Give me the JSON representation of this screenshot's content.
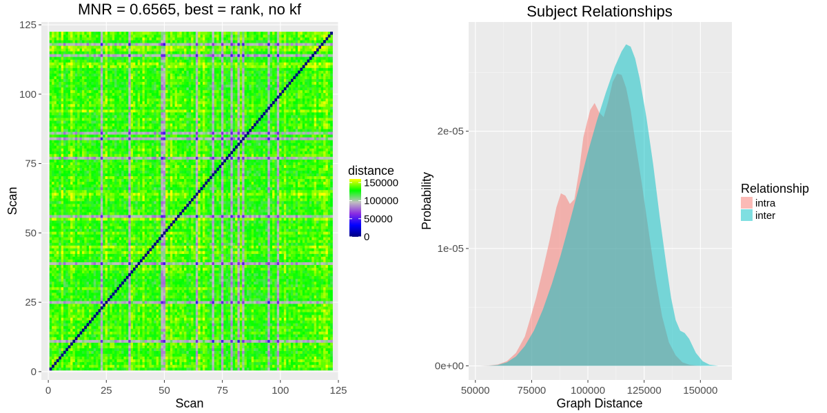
{
  "chart_data": [
    {
      "type": "heatmap",
      "title": "MNR = 0.6565, best = rank, no kf",
      "xlabel": "Scan",
      "ylabel": "Scan",
      "n": 122,
      "xlim": [
        -3,
        125
      ],
      "ylim": [
        -3,
        126
      ],
      "x_ticks": [
        "0",
        "25",
        "50",
        "75",
        "100",
        "125"
      ],
      "y_ticks": [
        "0",
        "25",
        "50",
        "75",
        "100",
        "125"
      ],
      "tick_values": [
        0,
        25,
        50,
        75,
        100,
        125
      ],
      "diagonal_value": 0,
      "legend": {
        "title": "distance",
        "labels": [
          "150000",
          "100000",
          "50000",
          "0"
        ],
        "values": [
          150000,
          100000,
          50000,
          0
        ],
        "range": [
          0,
          160000
        ],
        "colors": [
          "#000080",
          "#0000ff",
          "#8a2be2",
          "#c0c0c0",
          "#00ff00",
          "#ffff00"
        ]
      }
    },
    {
      "type": "area",
      "title": "Subject Relationships",
      "xlabel": "Graph Distance",
      "ylabel": "Probability",
      "xlim": [
        47000,
        164000
      ],
      "ylim": [
        -1.2e-06,
        2.93e-05
      ],
      "x_ticks": [
        "50000",
        "75000",
        "100000",
        "125000",
        "150000"
      ],
      "x_tick_values": [
        50000,
        75000,
        100000,
        125000,
        150000
      ],
      "y_ticks": [
        "0e+00",
        "1e-05",
        "2e-05"
      ],
      "y_tick_values": [
        0,
        1e-05,
        2e-05
      ],
      "legend": {
        "title": "Relationship",
        "labels": [
          "intra",
          "inter"
        ]
      },
      "series": [
        {
          "name": "intra",
          "color": "#f8766d",
          "x": [
            52000,
            56000,
            60000,
            64000,
            68000,
            72000,
            74000,
            77000,
            80000,
            83000,
            86000,
            88000,
            90000,
            92000,
            94000,
            96000,
            98000,
            101000,
            103000,
            105000,
            107000,
            109000,
            111000,
            113000,
            115000,
            117000,
            119000,
            121000,
            124000,
            127000,
            130000,
            133000,
            136000,
            139000,
            142000,
            145000,
            148000,
            151000,
            154000,
            158000
          ],
          "y": [
            0,
            3e-08,
            1.2e-07,
            4e-07,
            1.1e-06,
            2.5e-06,
            3.8e-06,
            5.8e-06,
            8.2e-06,
            1.07e-05,
            1.35e-05,
            1.47e-05,
            1.45e-05,
            1.38e-05,
            1.42e-05,
            1.65e-05,
            1.95e-05,
            2.18e-05,
            2.24e-05,
            2.16e-05,
            2.12e-05,
            2.25e-05,
            2.42e-05,
            2.49e-05,
            2.48e-05,
            2.37e-05,
            2.18e-05,
            1.92e-05,
            1.55e-05,
            1.15e-05,
            7.5e-06,
            4.2e-06,
            2e-06,
            9e-07,
            3e-07,
            1e-07,
            3e-08,
            1e-08,
            0,
            0
          ]
        },
        {
          "name": "inter",
          "color": "#00bfc4",
          "x": [
            52000,
            56000,
            60000,
            64000,
            68000,
            72000,
            76000,
            80000,
            84000,
            88000,
            92000,
            96000,
            100000,
            104000,
            108000,
            112000,
            115000,
            117000,
            119000,
            121000,
            123000,
            126000,
            129000,
            132000,
            135000,
            137000,
            139000,
            141000,
            143000,
            145000,
            148000,
            151000,
            154000,
            158000
          ],
          "y": [
            0,
            2e-08,
            8e-08,
            3e-07,
            8e-07,
            1.7e-06,
            3e-06,
            4.8e-06,
            7e-06,
            9.5e-06,
            1.23e-05,
            1.52e-05,
            1.82e-05,
            2.09e-05,
            2.33e-05,
            2.55e-05,
            2.68e-05,
            2.74e-05,
            2.72e-05,
            2.62e-05,
            2.45e-05,
            2.12e-05,
            1.72e-05,
            1.26e-05,
            8.4e-06,
            5.8e-06,
            3.9e-06,
            3e-06,
            2.8e-06,
            2.3e-06,
            1.1e-06,
            4e-07,
            1e-07,
            0
          ]
        }
      ]
    }
  ]
}
